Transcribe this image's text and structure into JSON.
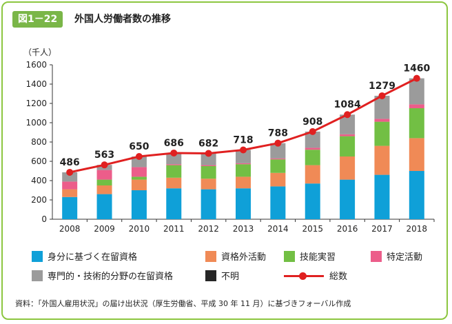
{
  "figure": {
    "badge": "図1－22",
    "title": "外国人労働者数の推移"
  },
  "colors": {
    "frame": "#8cc63f",
    "badge": "#7ab648",
    "身分に基づく在留資格": "#0fa0d8",
    "資格外活動": "#f08a56",
    "技能実習": "#72bf44",
    "特定活動": "#ec5d8a",
    "専門的・技術的分野の在留資格": "#9b9b9b",
    "不明": "#262626",
    "総数": "#e02020"
  },
  "chart_data": {
    "type": "bar",
    "stacked": true,
    "categories": [
      "2008",
      "2009",
      "2010",
      "2011",
      "2012",
      "2013",
      "2014",
      "2015",
      "2016",
      "2017",
      "2018"
    ],
    "ylabel": "（千人）",
    "ylim": [
      0,
      1600
    ],
    "yticks": [
      0,
      200,
      400,
      600,
      800,
      1000,
      1200,
      1400,
      1600
    ],
    "grid": false,
    "series": [
      {
        "name": "身分に基づく在留資格",
        "values": [
          230,
          260,
          300,
          320,
          310,
          320,
          340,
          370,
          410,
          460,
          500
        ]
      },
      {
        "name": "資格外活動",
        "values": [
          80,
          90,
          110,
          110,
          110,
          120,
          140,
          190,
          240,
          300,
          340
        ]
      },
      {
        "name": "技能実習",
        "values": [
          0,
          60,
          30,
          130,
          130,
          130,
          140,
          160,
          210,
          250,
          310
        ]
      },
      {
        "name": "特定活動",
        "values": [
          80,
          100,
          100,
          10,
          10,
          10,
          10,
          20,
          20,
          30,
          40
        ]
      },
      {
        "name": "専門的・技術的分野の在留資格",
        "values": [
          96,
          53,
          110,
          116,
          122,
          138,
          158,
          168,
          204,
          239,
          270
        ]
      },
      {
        "name": "不明",
        "values": [
          0,
          0,
          0,
          0,
          0,
          0,
          0,
          0,
          0,
          0,
          0
        ]
      }
    ],
    "line": {
      "name": "総数",
      "values": [
        486,
        563,
        650,
        686,
        682,
        718,
        788,
        908,
        1084,
        1279,
        1460
      ],
      "labels": [
        "486",
        "563",
        "650",
        "686",
        "682",
        "718",
        "788",
        "908",
        "1084",
        "1279",
        "1460"
      ]
    },
    "legend": "bottom"
  },
  "source": "資料：「外国人雇用状況」の届け出状況（厚生労働省、平成 30 年 11 月）に基づきフォーバル作成"
}
